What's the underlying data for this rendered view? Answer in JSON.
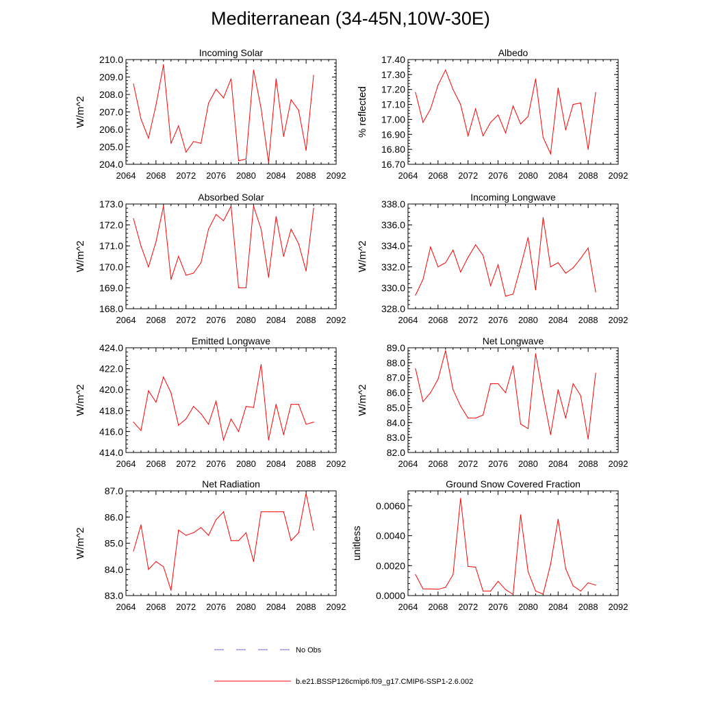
{
  "title": "Mediterranean (34-45N,10W-30E)",
  "legend": {
    "entries": [
      {
        "label": "No Obs",
        "color": "#6666cc",
        "dash": "dashed"
      },
      {
        "label": "b.e21.BSSP126cmip6.f09_g17.CMIP6-SSP1-2.6.002",
        "color": "#ff0000",
        "dash": "solid"
      }
    ]
  },
  "chart_data": [
    {
      "type": "line",
      "title": "Incoming Solar",
      "ylabel": "W/m^2",
      "xlim": [
        2064,
        2092
      ],
      "xticks": [
        "2064",
        "2068",
        "2072",
        "2076",
        "2080",
        "2084",
        "2088",
        "2092"
      ],
      "ylim": [
        204.0,
        210.0
      ],
      "yticks": [
        "204.0",
        "205.0",
        "206.0",
        "207.0",
        "208.0",
        "209.0",
        "210.0"
      ],
      "series": [
        {
          "color": "#ff0000",
          "x": [
            2065,
            2066,
            2067,
            2068,
            2069,
            2070,
            2071,
            2072,
            2073,
            2074,
            2075,
            2076,
            2077,
            2078,
            2079,
            2080,
            2081,
            2082,
            2083,
            2084,
            2085,
            2086,
            2087,
            2088,
            2089
          ],
          "values": [
            208.6,
            206.6,
            205.5,
            207.4,
            209.7,
            205.2,
            206.2,
            204.7,
            205.3,
            205.2,
            207.5,
            208.3,
            207.8,
            208.9,
            204.2,
            204.3,
            209.4,
            207.2,
            204.1,
            208.9,
            205.6,
            207.7,
            207.1,
            204.8,
            209.1
          ]
        }
      ]
    },
    {
      "type": "line",
      "title": "Albedo",
      "ylabel": "% reflected",
      "xlim": [
        2064,
        2092
      ],
      "xticks": [
        "2064",
        "2068",
        "2072",
        "2076",
        "2080",
        "2084",
        "2088",
        "2092"
      ],
      "ylim": [
        16.7,
        17.4
      ],
      "yticks": [
        "16.70",
        "16.80",
        "16.90",
        "17.00",
        "17.10",
        "17.20",
        "17.30",
        "17.40"
      ],
      "series": [
        {
          "color": "#ff0000",
          "x": [
            2065,
            2066,
            2067,
            2068,
            2069,
            2070,
            2071,
            2072,
            2073,
            2074,
            2075,
            2076,
            2077,
            2078,
            2079,
            2080,
            2081,
            2082,
            2083,
            2084,
            2085,
            2086,
            2087,
            2088,
            2089
          ],
          "values": [
            17.18,
            16.98,
            17.07,
            17.23,
            17.33,
            17.2,
            17.1,
            16.89,
            17.07,
            16.89,
            16.98,
            17.03,
            16.91,
            17.09,
            16.97,
            17.02,
            17.27,
            16.88,
            16.77,
            17.21,
            16.93,
            17.1,
            17.11,
            16.8,
            17.18
          ]
        }
      ]
    },
    {
      "type": "line",
      "title": "Absorbed Solar",
      "ylabel": "W/m^2",
      "xlim": [
        2064,
        2092
      ],
      "xticks": [
        "2064",
        "2068",
        "2072",
        "2076",
        "2080",
        "2084",
        "2088",
        "2092"
      ],
      "ylim": [
        168.0,
        173.0
      ],
      "yticks": [
        "168.0",
        "169.0",
        "170.0",
        "171.0",
        "172.0",
        "173.0"
      ],
      "series": [
        {
          "color": "#ff0000",
          "x": [
            2065,
            2066,
            2067,
            2068,
            2069,
            2070,
            2071,
            2072,
            2073,
            2074,
            2075,
            2076,
            2077,
            2078,
            2079,
            2080,
            2081,
            2082,
            2083,
            2084,
            2085,
            2086,
            2087,
            2088,
            2089
          ],
          "values": [
            172.3,
            171.0,
            170.0,
            171.2,
            172.9,
            169.4,
            170.5,
            169.6,
            169.7,
            170.2,
            171.8,
            172.5,
            172.2,
            172.9,
            169.0,
            169.0,
            172.9,
            171.8,
            169.5,
            172.4,
            170.5,
            171.8,
            171.1,
            169.8,
            172.8
          ]
        }
      ]
    },
    {
      "type": "line",
      "title": "Incoming Longwave",
      "ylabel": "W/m^2",
      "xlim": [
        2064,
        2092
      ],
      "xticks": [
        "2064",
        "2068",
        "2072",
        "2076",
        "2080",
        "2084",
        "2088",
        "2092"
      ],
      "ylim": [
        328.0,
        338.0
      ],
      "yticks": [
        "328.0",
        "330.0",
        "332.0",
        "334.0",
        "336.0",
        "338.0"
      ],
      "series": [
        {
          "color": "#ff0000",
          "x": [
            2065,
            2066,
            2067,
            2068,
            2069,
            2070,
            2071,
            2072,
            2073,
            2074,
            2075,
            2076,
            2077,
            2078,
            2079,
            2080,
            2081,
            2082,
            2083,
            2084,
            2085,
            2086,
            2087,
            2088,
            2089
          ],
          "values": [
            329.3,
            330.8,
            333.9,
            332.0,
            332.4,
            333.6,
            331.5,
            332.9,
            334.1,
            333.1,
            330.2,
            332.2,
            329.2,
            329.4,
            332.0,
            334.8,
            329.8,
            336.7,
            332.0,
            332.4,
            331.4,
            331.9,
            332.8,
            333.8,
            329.6
          ]
        }
      ]
    },
    {
      "type": "line",
      "title": "Emitted Longwave",
      "ylabel": "W/m^2",
      "xlim": [
        2064,
        2092
      ],
      "xticks": [
        "2064",
        "2068",
        "2072",
        "2076",
        "2080",
        "2084",
        "2088",
        "2092"
      ],
      "ylim": [
        414.0,
        424.0
      ],
      "yticks": [
        "414.0",
        "416.0",
        "418.0",
        "420.0",
        "422.0",
        "424.0"
      ],
      "series": [
        {
          "color": "#ff0000",
          "x": [
            2065,
            2066,
            2067,
            2068,
            2069,
            2070,
            2071,
            2072,
            2073,
            2074,
            2075,
            2076,
            2077,
            2078,
            2079,
            2080,
            2081,
            2082,
            2083,
            2084,
            2085,
            2086,
            2087,
            2088,
            2089
          ],
          "values": [
            416.9,
            416.1,
            419.9,
            418.8,
            421.2,
            419.7,
            416.6,
            417.2,
            418.4,
            417.7,
            416.7,
            418.9,
            415.2,
            417.2,
            416.0,
            418.4,
            418.3,
            422.4,
            415.2,
            418.6,
            415.7,
            418.6,
            418.6,
            416.7,
            416.9
          ]
        }
      ]
    },
    {
      "type": "line",
      "title": "Net Longwave",
      "ylabel": "W/m^2",
      "xlim": [
        2064,
        2092
      ],
      "xticks": [
        "2064",
        "2068",
        "2072",
        "2076",
        "2080",
        "2084",
        "2088",
        "2092"
      ],
      "ylim": [
        82.0,
        89.0
      ],
      "yticks": [
        "82.0",
        "83.0",
        "84.0",
        "85.0",
        "86.0",
        "87.0",
        "88.0",
        "89.0"
      ],
      "series": [
        {
          "color": "#ff0000",
          "x": [
            2065,
            2066,
            2067,
            2068,
            2069,
            2070,
            2071,
            2072,
            2073,
            2074,
            2075,
            2076,
            2077,
            2078,
            2079,
            2080,
            2081,
            2082,
            2083,
            2084,
            2085,
            2086,
            2087,
            2088,
            2089
          ],
          "values": [
            87.6,
            85.4,
            86.0,
            86.9,
            88.8,
            86.2,
            85.1,
            84.3,
            84.3,
            84.5,
            86.6,
            86.6,
            86.0,
            87.8,
            83.9,
            83.6,
            88.6,
            85.8,
            83.2,
            86.2,
            84.3,
            86.6,
            85.8,
            82.9,
            87.3
          ]
        }
      ]
    },
    {
      "type": "line",
      "title": "Net Radiation",
      "ylabel": "W/m^2",
      "xlim": [
        2064,
        2092
      ],
      "xticks": [
        "2064",
        "2068",
        "2072",
        "2076",
        "2080",
        "2084",
        "2088",
        "2092"
      ],
      "ylim": [
        83.0,
        87.0
      ],
      "yticks": [
        "83.0",
        "84.0",
        "85.0",
        "86.0",
        "87.0"
      ],
      "series": [
        {
          "color": "#ff0000",
          "x": [
            2065,
            2066,
            2067,
            2068,
            2069,
            2070,
            2071,
            2072,
            2073,
            2074,
            2075,
            2076,
            2077,
            2078,
            2079,
            2080,
            2081,
            2082,
            2083,
            2084,
            2085,
            2086,
            2087,
            2088,
            2089
          ],
          "values": [
            84.7,
            85.7,
            84.0,
            84.3,
            84.1,
            83.2,
            85.5,
            85.3,
            85.4,
            85.6,
            85.3,
            85.9,
            86.2,
            85.1,
            85.1,
            85.4,
            84.3,
            86.2,
            86.2,
            86.2,
            86.2,
            85.1,
            85.4,
            86.9,
            85.5
          ]
        }
      ]
    },
    {
      "type": "line",
      "title": "Ground Snow Covered Fraction",
      "ylabel": "unitless",
      "xlim": [
        2064,
        2092
      ],
      "xticks": [
        "2064",
        "2068",
        "2072",
        "2076",
        "2080",
        "2084",
        "2088",
        "2092"
      ],
      "ylim": [
        0.0,
        0.007
      ],
      "ytick_values": [
        0.0,
        0.002,
        0.004,
        0.006
      ],
      "yticks": [
        "0.0000",
        "0.0020",
        "0.0040",
        "0.0060"
      ],
      "series": [
        {
          "color": "#ff0000",
          "x": [
            2065,
            2066,
            2067,
            2068,
            2069,
            2070,
            2071,
            2072,
            2073,
            2074,
            2075,
            2076,
            2077,
            2078,
            2079,
            2080,
            2081,
            2082,
            2083,
            2084,
            2085,
            2086,
            2087,
            2088,
            2089
          ],
          "values": [
            0.0014,
            0.00045,
            0.00045,
            0.00042,
            0.00055,
            0.0014,
            0.0065,
            0.00195,
            0.0019,
            0.0003,
            0.0003,
            0.00095,
            0.0004,
            8e-05,
            0.0054,
            0.0016,
            0.0003,
            0.0001,
            0.0021,
            0.0051,
            0.0018,
            0.00065,
            0.0003,
            0.00085,
            0.0007
          ]
        }
      ]
    }
  ]
}
